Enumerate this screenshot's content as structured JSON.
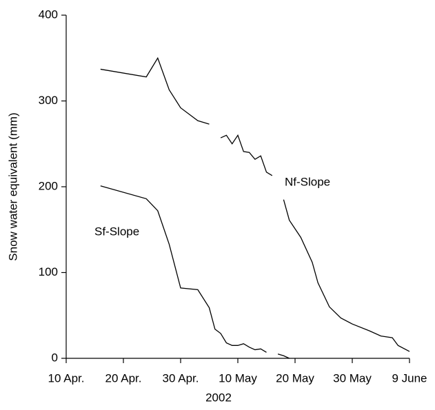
{
  "chart_data": {
    "type": "line",
    "x": [
      "2002-04-16",
      "2002-04-24",
      "2002-04-26",
      "2002-04-28",
      "2002-04-30",
      "2002-05-03",
      "2002-05-05",
      "2002-05-06",
      "2002-05-07",
      "2002-05-08",
      "2002-05-09",
      "2002-05-10",
      "2002-05-11",
      "2002-05-12",
      "2002-05-13",
      "2002-05-14",
      "2002-05-15",
      "2002-05-16",
      "2002-05-17",
      "2002-05-18",
      "2002-05-19",
      "2002-05-21",
      "2002-05-23",
      "2002-05-24",
      "2002-05-26",
      "2002-05-28",
      "2002-05-30",
      "2002-06-02",
      "2002-06-04",
      "2002-06-06",
      "2002-06-07",
      "2002-06-09"
    ],
    "series": [
      {
        "name": "Nf-Slope",
        "color": "#000000",
        "values": [
          337,
          328,
          350,
          313,
          292,
          277,
          273,
          null,
          257,
          260,
          250,
          260,
          241,
          240,
          232,
          236,
          217,
          213,
          null,
          185,
          161,
          141,
          112,
          88,
          60,
          47,
          40,
          32,
          26,
          24,
          15,
          8
        ]
      },
      {
        "name": "Sf-Slope",
        "color": "#000000",
        "values": [
          201,
          186,
          172,
          133,
          82,
          80,
          59,
          34,
          29,
          18,
          15,
          15,
          17,
          13,
          10,
          11,
          7,
          null,
          5,
          3,
          0,
          null,
          null,
          null,
          null,
          null,
          null,
          null,
          null,
          null,
          null,
          null
        ]
      }
    ],
    "xlabel": "2002",
    "ylabel": "Snow water equivalent (mm)",
    "xlim": [
      "2002-04-10",
      "2002-06-09"
    ],
    "xticks": [
      {
        "value": "2002-04-10",
        "label": "10 Apr."
      },
      {
        "value": "2002-04-20",
        "label": "20 Apr."
      },
      {
        "value": "2002-04-30",
        "label": "30 Apr."
      },
      {
        "value": "2002-05-10",
        "label": "10 May"
      },
      {
        "value": "2002-05-20",
        "label": "20 May"
      },
      {
        "value": "2002-05-30",
        "label": "30 May"
      },
      {
        "value": "2002-06-09",
        "label": "9 June"
      }
    ],
    "ylim": [
      0,
      400
    ],
    "yticks": [
      0,
      100,
      200,
      300,
      400
    ]
  }
}
